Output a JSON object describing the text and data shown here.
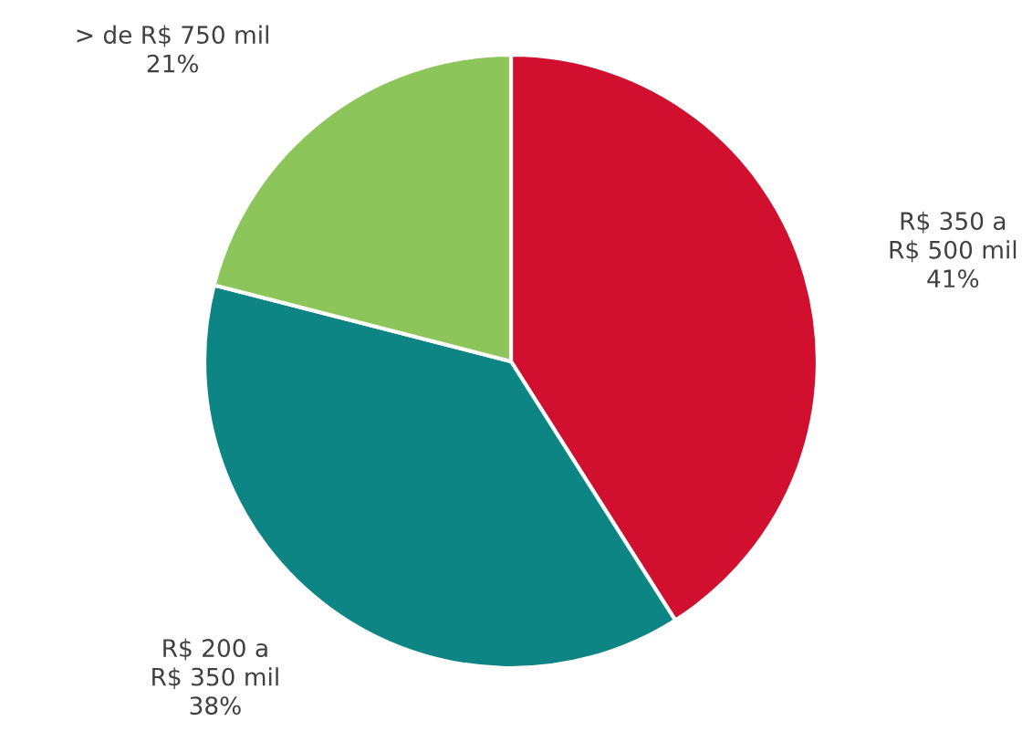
{
  "chart_data": {
    "type": "pie",
    "categories": [
      "R$ 350 a\nR$ 500 mil",
      "R$ 200 a\nR$ 350 mil",
      "> de R$ 750 mil"
    ],
    "values": [
      41,
      38,
      21
    ],
    "colors": [
      "#d0102e",
      "#0e8585",
      "#8cc65a"
    ],
    "value_labels": [
      "41%",
      "38%",
      "21%"
    ]
  }
}
